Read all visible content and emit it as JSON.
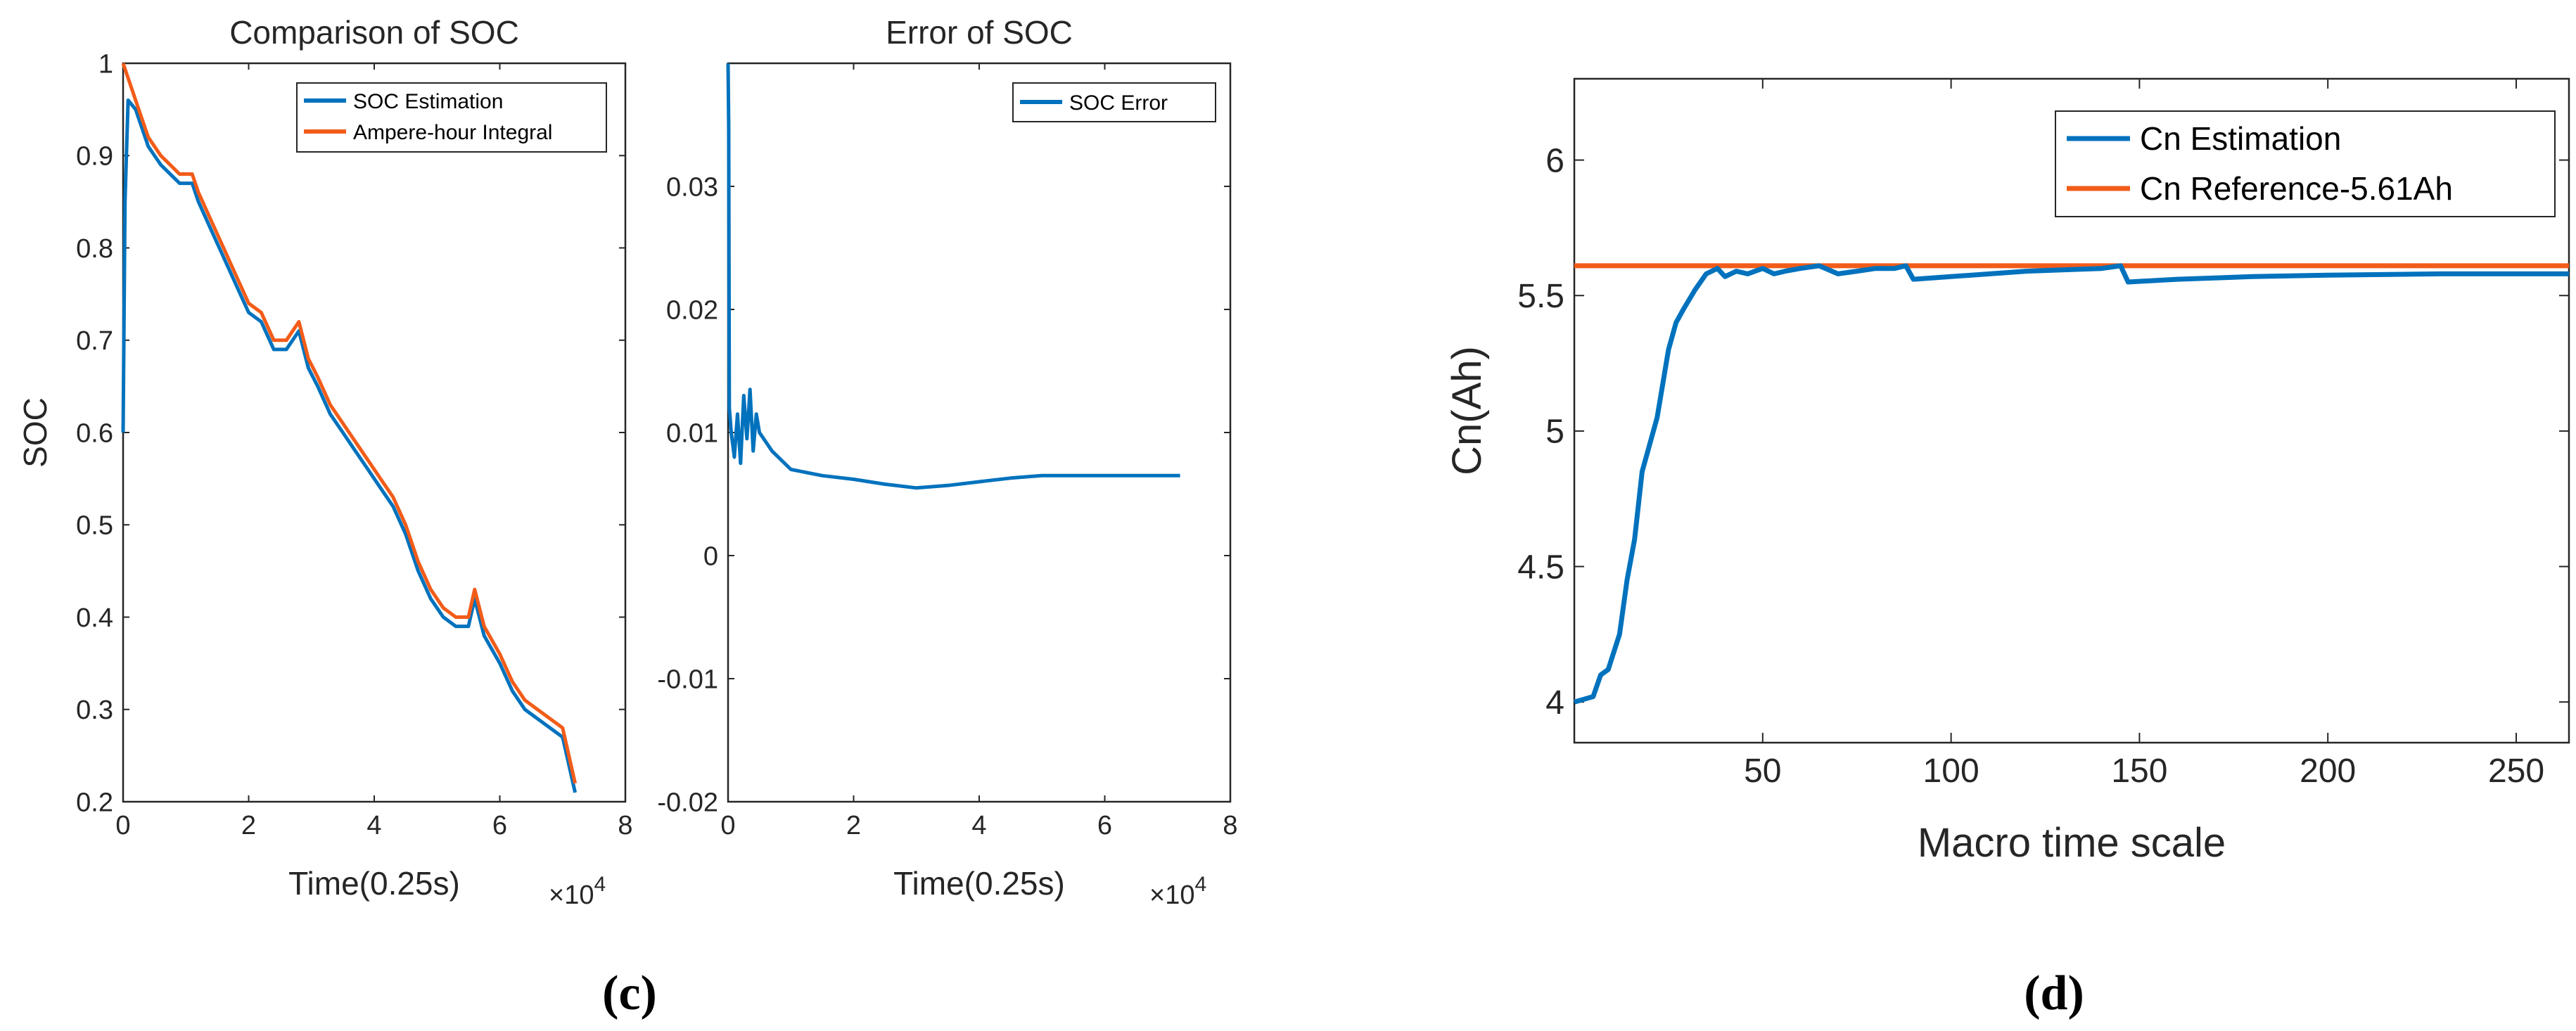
{
  "colors": {
    "blue": "#0072BD",
    "orange": "#F25C19",
    "axis": "#262626"
  },
  "chart_data": [
    {
      "id": "c1",
      "type": "line",
      "title": "Comparison of SOC",
      "xlabel": "Time(0.25s)",
      "ylabel": "SOC",
      "x_exponent": "×10",
      "x_exponent_power": "4",
      "xlim": [
        0,
        8
      ],
      "ylim": [
        0.2,
        1
      ],
      "xticks": [
        "0",
        "2",
        "4",
        "6",
        "8"
      ],
      "yticks": [
        "0.2",
        "0.3",
        "0.4",
        "0.5",
        "0.6",
        "0.7",
        "0.8",
        "0.9",
        "1"
      ],
      "legend": {
        "position": "top-right",
        "entries": [
          "SOC Estimation",
          "Ampere-hour Integral"
        ]
      },
      "series": [
        {
          "name": "SOC Estimation",
          "x": [
            0,
            0.03,
            0.08,
            0.2,
            0.4,
            0.6,
            0.9,
            1.1,
            1.2,
            1.4,
            1.6,
            1.8,
            2.0,
            2.2,
            2.4,
            2.6,
            2.8,
            2.95,
            3.1,
            3.3,
            3.5,
            3.7,
            3.9,
            4.1,
            4.3,
            4.5,
            4.7,
            4.9,
            5.1,
            5.3,
            5.5,
            5.6,
            5.75,
            6.0,
            6.2,
            6.4,
            6.6,
            6.8,
            7.0,
            7.1,
            7.2
          ],
          "y": [
            0.6,
            0.85,
            0.96,
            0.95,
            0.91,
            0.89,
            0.87,
            0.87,
            0.85,
            0.82,
            0.79,
            0.76,
            0.73,
            0.72,
            0.69,
            0.69,
            0.71,
            0.67,
            0.65,
            0.62,
            0.6,
            0.58,
            0.56,
            0.54,
            0.52,
            0.49,
            0.45,
            0.42,
            0.4,
            0.39,
            0.39,
            0.42,
            0.38,
            0.35,
            0.32,
            0.3,
            0.29,
            0.28,
            0.27,
            0.24,
            0.21
          ]
        },
        {
          "name": "Ampere-hour Integral",
          "x": [
            0,
            0.2,
            0.4,
            0.6,
            0.9,
            1.1,
            1.2,
            1.4,
            1.6,
            1.8,
            2.0,
            2.2,
            2.4,
            2.6,
            2.8,
            2.95,
            3.1,
            3.3,
            3.5,
            3.7,
            3.9,
            4.1,
            4.3,
            4.5,
            4.7,
            4.9,
            5.1,
            5.3,
            5.5,
            5.6,
            5.75,
            6.0,
            6.2,
            6.4,
            6.6,
            6.8,
            7.0,
            7.1,
            7.2
          ],
          "y": [
            1.0,
            0.96,
            0.92,
            0.9,
            0.88,
            0.88,
            0.86,
            0.83,
            0.8,
            0.77,
            0.74,
            0.73,
            0.7,
            0.7,
            0.72,
            0.68,
            0.66,
            0.63,
            0.61,
            0.59,
            0.57,
            0.55,
            0.53,
            0.5,
            0.46,
            0.43,
            0.41,
            0.4,
            0.4,
            0.43,
            0.39,
            0.36,
            0.33,
            0.31,
            0.3,
            0.29,
            0.28,
            0.25,
            0.22
          ]
        }
      ]
    },
    {
      "id": "c2",
      "type": "line",
      "title": "Error of SOC",
      "xlabel": "Time(0.25s)",
      "ylabel": "",
      "x_exponent": "×10",
      "x_exponent_power": "4",
      "xlim": [
        0,
        8
      ],
      "ylim": [
        -0.02,
        0.04
      ],
      "xticks": [
        "0",
        "2",
        "4",
        "6",
        "8"
      ],
      "yticks": [
        "-0.02",
        "-0.01",
        "0",
        "0.01",
        "0.02",
        "0.03"
      ],
      "legend": {
        "position": "top-right",
        "entries": [
          "SOC Error"
        ]
      },
      "series": [
        {
          "name": "SOC Error",
          "x": [
            0.0,
            0.01,
            0.02,
            0.05,
            0.1,
            0.15,
            0.2,
            0.25,
            0.3,
            0.35,
            0.4,
            0.45,
            0.5,
            0.7,
            1.0,
            1.5,
            2.0,
            2.5,
            3.0,
            3.5,
            4.0,
            4.5,
            5.0,
            6.0,
            7.0,
            7.2
          ],
          "y": [
            0.04,
            0.035,
            0.012,
            0.01,
            0.008,
            0.0115,
            0.0075,
            0.013,
            0.0095,
            0.0135,
            0.0085,
            0.0115,
            0.01,
            0.0085,
            0.007,
            0.0065,
            0.0062,
            0.0058,
            0.0055,
            0.0057,
            0.006,
            0.0063,
            0.0065,
            0.0065,
            0.0065,
            0.0065
          ]
        }
      ]
    },
    {
      "id": "d",
      "type": "line",
      "title": "",
      "xlabel": "Macro time scale",
      "ylabel": "Cn(Ah)",
      "xlim": [
        0,
        264
      ],
      "ylim": [
        3.85,
        6.3
      ],
      "xticks": [
        "50",
        "100",
        "150",
        "200",
        "250"
      ],
      "yticks": [
        "4",
        "4.5",
        "5",
        "5.5",
        "6"
      ],
      "legend": {
        "position": "top-right",
        "entries": [
          "Cn Estimation",
          "Cn Reference-5.61Ah"
        ]
      },
      "series": [
        {
          "name": "Cn Estimation",
          "x": [
            0,
            5,
            7,
            9,
            12,
            14,
            16,
            18,
            20,
            22,
            25,
            27,
            29,
            32,
            35,
            38,
            40,
            43,
            46,
            50,
            53,
            56,
            60,
            65,
            70,
            75,
            80,
            85,
            88,
            90,
            100,
            120,
            140,
            145,
            147,
            160,
            180,
            200,
            230,
            264
          ],
          "y": [
            4.0,
            4.02,
            4.1,
            4.12,
            4.25,
            4.45,
            4.6,
            4.85,
            4.95,
            5.05,
            5.3,
            5.4,
            5.45,
            5.52,
            5.58,
            5.6,
            5.57,
            5.59,
            5.58,
            5.6,
            5.58,
            5.59,
            5.6,
            5.61,
            5.58,
            5.59,
            5.6,
            5.6,
            5.61,
            5.56,
            5.57,
            5.59,
            5.6,
            5.61,
            5.55,
            5.56,
            5.57,
            5.575,
            5.58,
            5.58
          ]
        },
        {
          "name": "Cn Reference-5.61Ah",
          "x": [
            0,
            264
          ],
          "y": [
            5.61,
            5.61
          ]
        }
      ]
    }
  ],
  "panel_labels": {
    "c": "(c)",
    "d": "(d)"
  }
}
